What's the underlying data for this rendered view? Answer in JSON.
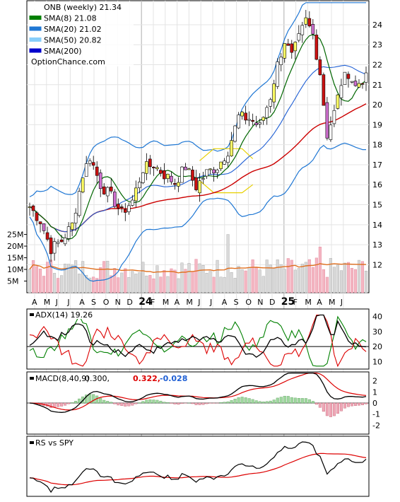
{
  "chart_data": [
    {
      "type": "candlestick",
      "panel": "price",
      "legend": [
        {
          "label": "ONB (weekly) 21.34",
          "color": "#ffffff"
        },
        {
          "label": "SMA(8) 21.08",
          "color": "#008000"
        },
        {
          "label": "SMA(20) 21.02",
          "color": "#1f77d4"
        },
        {
          "label": "SMA(50) 20.82",
          "color": "#87cefa"
        },
        {
          "label": "SMA(200)",
          "color": "#0000cc"
        }
      ],
      "watermark": "OptionChance.com",
      "ylim": [
        10.6,
        25.2
      ],
      "yticks": [
        12,
        13,
        14,
        15,
        16,
        17,
        18,
        19,
        20,
        21,
        22,
        23,
        24
      ],
      "xtick_labels": [
        "A",
        "M",
        "J",
        "J",
        "A",
        "S",
        "O",
        "N",
        "D",
        "24",
        "F",
        "M",
        "A",
        "M",
        "J",
        "J",
        "A",
        "S",
        "O",
        "N",
        "D",
        "25",
        "F",
        "M",
        "A",
        "M",
        "J"
      ],
      "xtick_bold": [
        "24",
        "25"
      ],
      "close_keypoints": [
        [
          0,
          14.9
        ],
        [
          3,
          14.2
        ],
        [
          6,
          12.8
        ],
        [
          9,
          13.2
        ],
        [
          12,
          14.0
        ],
        [
          15,
          16.5
        ],
        [
          17,
          17.4
        ],
        [
          20,
          16.0
        ],
        [
          23,
          15.4
        ],
        [
          26,
          14.6
        ],
        [
          29,
          15.2
        ],
        [
          32,
          16.8
        ],
        [
          35,
          17.0
        ],
        [
          38,
          16.5
        ],
        [
          41,
          16.1
        ],
        [
          44,
          16.9
        ],
        [
          47,
          15.9
        ],
        [
          50,
          16.6
        ],
        [
          53,
          16.9
        ],
        [
          56,
          17.7
        ],
        [
          59,
          19.4
        ],
        [
          62,
          19.3
        ],
        [
          65,
          18.9
        ],
        [
          68,
          20.4
        ],
        [
          70,
          22.0
        ],
        [
          72,
          23.2
        ],
        [
          74,
          22.4
        ],
        [
          76,
          23.3
        ],
        [
          78,
          24.2
        ],
        [
          80,
          23.5
        ],
        [
          82,
          21.6
        ],
        [
          84,
          18.5
        ],
        [
          86,
          19.6
        ],
        [
          88,
          21.1
        ],
        [
          90,
          21.6
        ],
        [
          92,
          20.9
        ],
        [
          94,
          21.3
        ]
      ],
      "notes": "weekly candles (red = down, yellow = up) with SMA lines and Bollinger bands"
    },
    {
      "type": "bar",
      "panel": "volume",
      "yticks": [
        "5M",
        "10M",
        "15M",
        "20M",
        "25M"
      ],
      "ylim": [
        0,
        27
      ],
      "notes": "weekly volume bars (pink = down week, grey = up week) with orange moving average near 8.5M-13M"
    },
    {
      "type": "line",
      "panel": "adx",
      "label": "ADX(14) 19.26",
      "ylim": [
        5,
        45
      ],
      "yticks": [
        10,
        20,
        30,
        40
      ],
      "reference_line": 20,
      "series": [
        {
          "name": "ADX",
          "color": "#000000"
        },
        {
          "name": "+DI",
          "color": "#008000"
        },
        {
          "name": "-DI",
          "color": "#dd0000"
        }
      ]
    },
    {
      "type": "line",
      "panel": "macd",
      "label": "MACD(8,40,9)",
      "values_text": [
        "0.300,",
        "0.322,",
        "-0.028"
      ],
      "value_colors": [
        "#000000",
        "#dd0000",
        "#1f5fd4"
      ],
      "ylim": [
        -2.8,
        2.8
      ],
      "yticks": [
        -2,
        -1,
        0,
        1,
        2
      ],
      "series": [
        {
          "name": "MACD",
          "color": "#000000"
        },
        {
          "name": "Signal",
          "color": "#dd0000"
        },
        {
          "name": "Histogram",
          "color": "#8fcf8f"
        }
      ]
    },
    {
      "type": "line",
      "panel": "relative_strength",
      "label": "RS vs SPY",
      "series": [
        {
          "name": "RS",
          "color": "#000000"
        },
        {
          "name": "RS average",
          "color": "#dd0000"
        }
      ]
    }
  ]
}
